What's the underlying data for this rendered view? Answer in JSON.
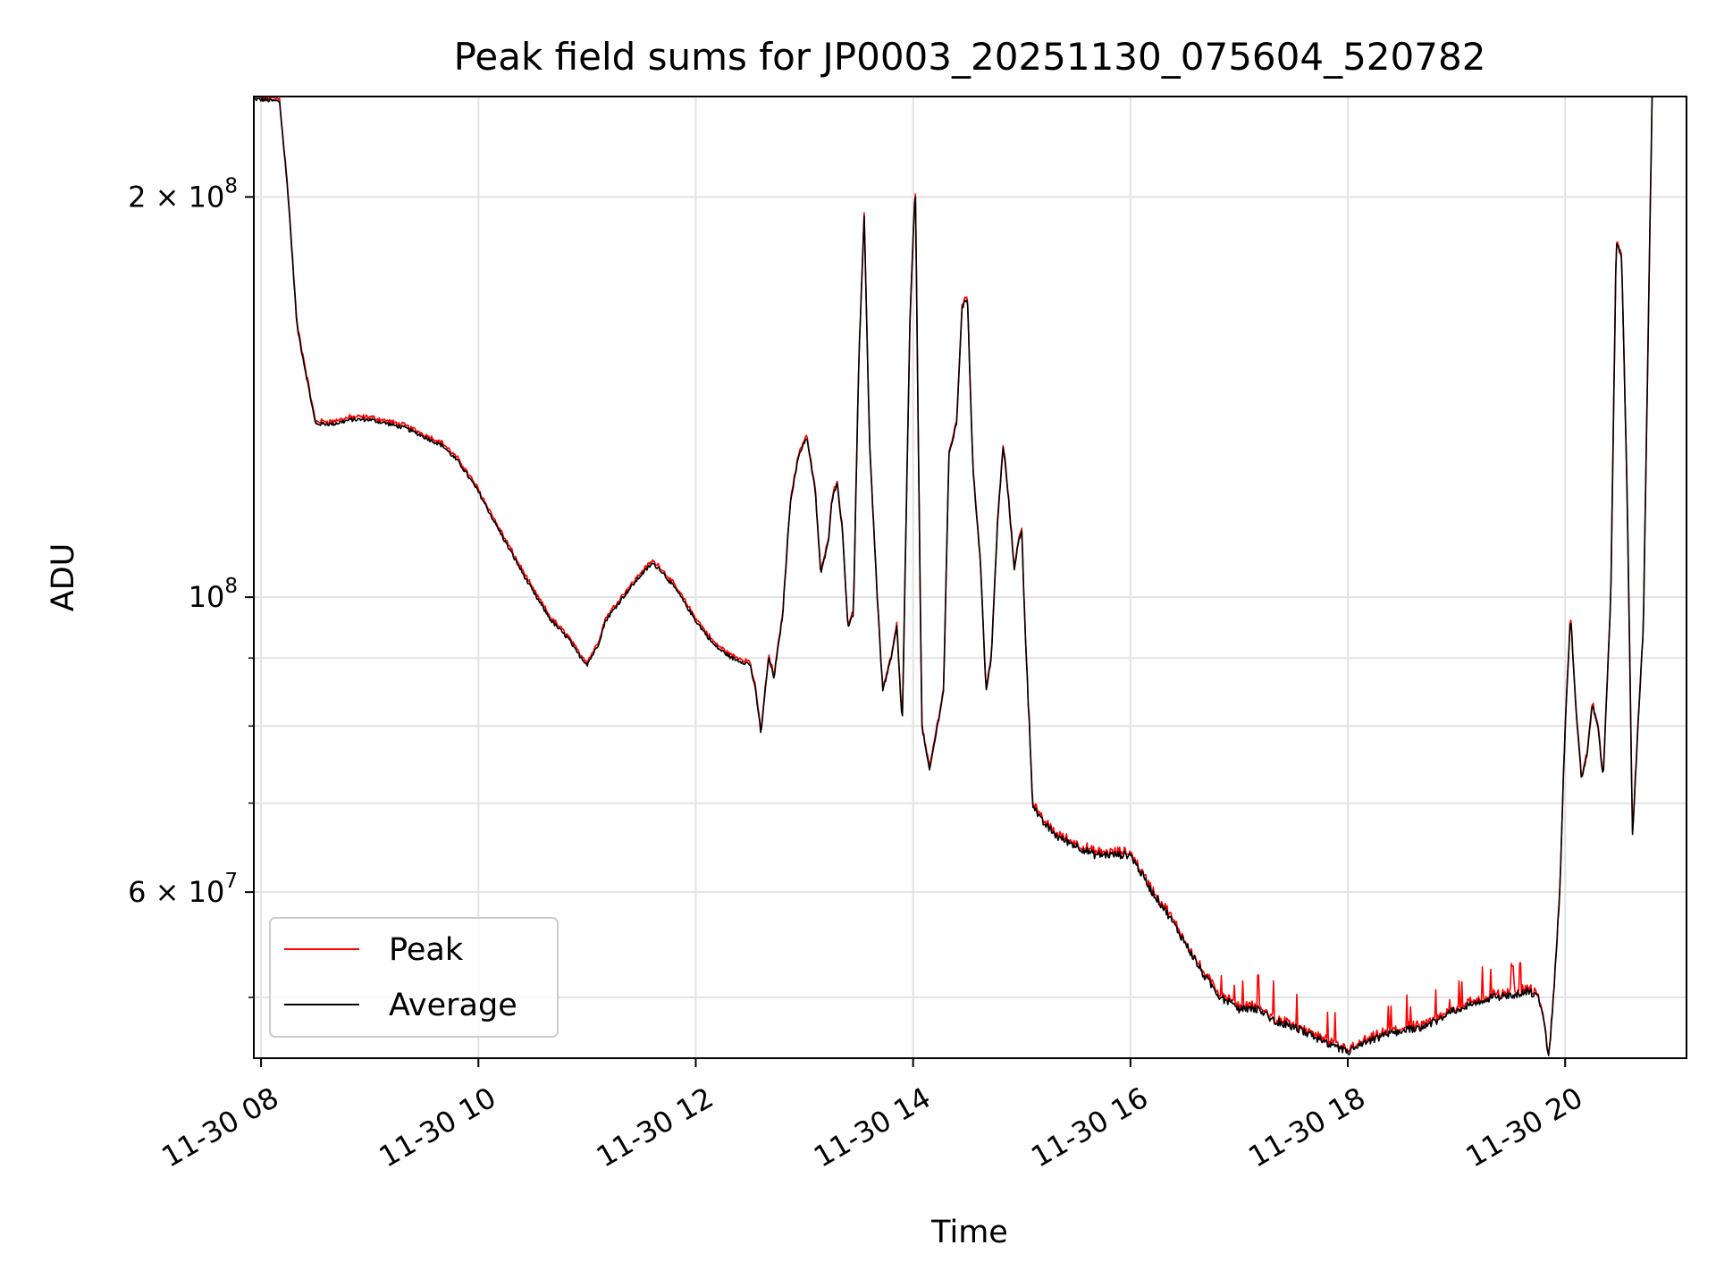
{
  "chart_data": {
    "type": "line",
    "title": "Peak field sums for JP0003_20251130_075604_520782",
    "xlabel": "Time",
    "ylabel": "ADU",
    "x_scale": "time",
    "y_scale": "log",
    "xlim": [
      "11-30 07:56",
      "11-30 21:07"
    ],
    "ylim": [
      45000000,
      238000000
    ],
    "grid": true,
    "legend_position": "lower-left",
    "x_ticks": [
      {
        "value": 8,
        "label": "11-30 08"
      },
      {
        "value": 10,
        "label": "11-30 10"
      },
      {
        "value": 12,
        "label": "11-30 12"
      },
      {
        "value": 14,
        "label": "11-30 14"
      },
      {
        "value": 16,
        "label": "11-30 16"
      },
      {
        "value": 18,
        "label": "11-30 18"
      },
      {
        "value": 20,
        "label": "11-30 20"
      }
    ],
    "y_major_ticks": [
      {
        "value": 60000000,
        "label_base": "6 × 10",
        "label_exp": "7"
      },
      {
        "value": 100000000,
        "label_base": "10",
        "label_exp": "8"
      },
      {
        "value": 200000000,
        "label_base": "2 × 10",
        "label_exp": "8"
      }
    ],
    "y_minor_ticks": [
      50000000,
      70000000,
      80000000,
      90000000
    ],
    "series": [
      {
        "name": "Peak",
        "color": "#ff0000"
      },
      {
        "name": "Average",
        "color": "#000000"
      }
    ],
    "x_hours": [
      7.93,
      8.17,
      8.25,
      8.33,
      8.5,
      8.67,
      8.83,
      9.0,
      9.17,
      9.33,
      9.5,
      9.67,
      9.83,
      10.0,
      10.17,
      10.33,
      10.5,
      10.67,
      10.83,
      10.9,
      11.0,
      11.1,
      11.17,
      11.33,
      11.5,
      11.6,
      11.67,
      11.83,
      12.0,
      12.17,
      12.33,
      12.5,
      12.55,
      12.6,
      12.67,
      12.72,
      12.8,
      12.87,
      12.95,
      13.02,
      13.1,
      13.15,
      13.22,
      13.25,
      13.3,
      13.35,
      13.4,
      13.45,
      13.5,
      13.55,
      13.6,
      13.67,
      13.72,
      13.8,
      13.85,
      13.9,
      13.97,
      14.02,
      14.08,
      14.15,
      14.2,
      14.28,
      14.33,
      14.4,
      14.45,
      14.5,
      14.55,
      14.62,
      14.67,
      14.72,
      14.78,
      14.83,
      14.88,
      14.93,
      14.97,
      15.0,
      15.03,
      15.1,
      15.17,
      15.33,
      15.5,
      15.67,
      15.83,
      16.0,
      16.2,
      16.33,
      16.5,
      16.67,
      16.83,
      17.0,
      17.17,
      17.33,
      17.5,
      17.67,
      17.83,
      18.0,
      18.17,
      18.33,
      18.5,
      18.67,
      18.83,
      19.0,
      19.17,
      19.33,
      19.5,
      19.67,
      19.75,
      19.8,
      19.85,
      19.9,
      19.95,
      20.0,
      20.05,
      20.1,
      20.15,
      20.2,
      20.25,
      20.3,
      20.35,
      20.42,
      20.47,
      20.52,
      20.57,
      20.62,
      20.67,
      20.72,
      20.8
    ],
    "average_values": [
      237000000,
      236000000,
      200000000,
      160000000,
      135000000,
      135000000,
      136000000,
      136000000,
      135000000,
      134000000,
      132000000,
      130000000,
      126000000,
      120000000,
      113000000,
      107000000,
      101000000,
      96000000,
      93000000,
      91000000,
      89000000,
      92000000,
      96000000,
      100000000,
      104000000,
      106000000,
      105000000,
      101000000,
      96000000,
      92000000,
      90000000,
      89000000,
      85000000,
      79000000,
      90000000,
      87000000,
      97000000,
      118000000,
      128000000,
      132000000,
      120000000,
      104000000,
      110000000,
      118000000,
      122000000,
      112000000,
      95000000,
      97000000,
      150000000,
      193000000,
      130000000,
      100000000,
      85000000,
      90000000,
      95000000,
      80000000,
      160000000,
      205000000,
      80000000,
      74000000,
      78000000,
      85000000,
      128000000,
      135000000,
      165000000,
      168000000,
      125000000,
      106000000,
      85000000,
      90000000,
      115000000,
      130000000,
      118000000,
      105000000,
      110000000,
      112000000,
      95000000,
      70000000,
      68000000,
      66000000,
      65000000,
      64000000,
      64000000,
      64000000,
      60000000,
      58000000,
      55000000,
      52000000,
      50000000,
      49000000,
      49000000,
      48000000,
      47500000,
      46800000,
      46000000,
      45500000,
      46200000,
      46800000,
      47200000,
      47500000,
      48000000,
      49000000,
      49500000,
      50000000,
      50200000,
      50500000,
      50000000,
      48000000,
      45000000,
      51000000,
      60000000,
      80000000,
      97000000,
      82000000,
      73000000,
      76000000,
      83000000,
      80000000,
      73000000,
      100000000,
      185000000,
      180000000,
      120000000,
      66000000,
      80000000,
      95000000,
      238000000
    ]
  }
}
